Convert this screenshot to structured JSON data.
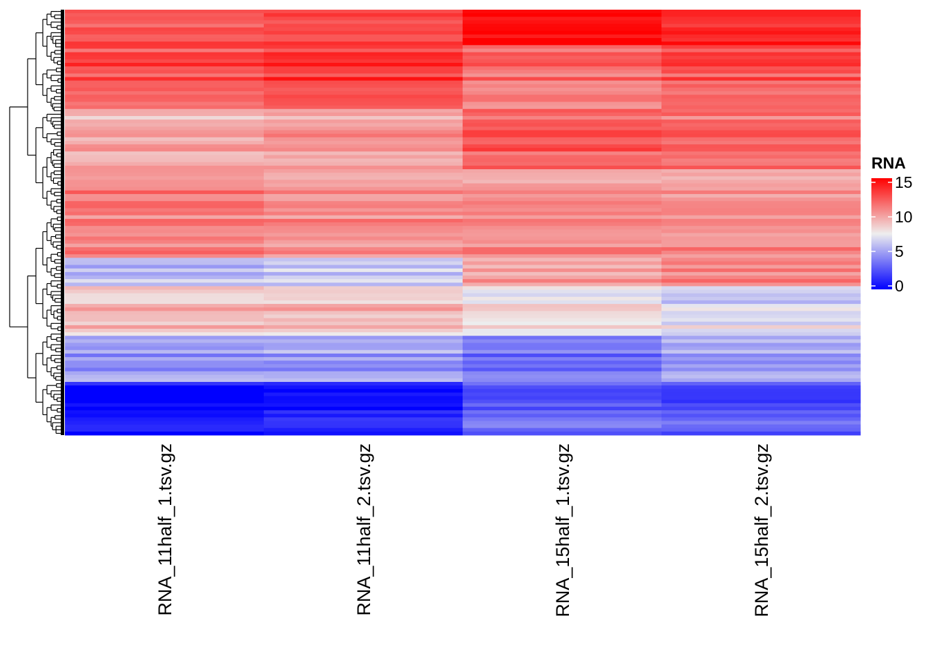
{
  "chart_data": {
    "type": "heatmap",
    "title": "",
    "xlabel": "",
    "ylabel": "",
    "columns": [
      "RNA_11half_1.tsv.gz",
      "RNA_11half_2.tsv.gz",
      "RNA_15half_1.tsv.gz",
      "RNA_15half_2.tsv.gz"
    ],
    "row_count": 120,
    "row_dendrogram": true,
    "row_segments": [
      {
        "rows": [
          0,
          10
        ],
        "values": [
          12.5,
          13.0,
          15.0,
          14.0
        ]
      },
      {
        "rows": [
          10,
          28
        ],
        "values": [
          12.5,
          13.0,
          11.5,
          12.5
        ]
      },
      {
        "rows": [
          28,
          45
        ],
        "values": [
          9.5,
          10.0,
          12.0,
          11.5
        ]
      },
      {
        "rows": [
          45,
          70
        ],
        "values": [
          11.0,
          10.5,
          10.5,
          10.5
        ]
      },
      {
        "rows": [
          70,
          78
        ],
        "values": [
          6.0,
          6.5,
          10.0,
          11.0
        ]
      },
      {
        "rows": [
          78,
          92
        ],
        "values": [
          9.0,
          9.0,
          8.0,
          7.0
        ]
      },
      {
        "rows": [
          92,
          105
        ],
        "values": [
          5.0,
          5.0,
          3.5,
          5.0
        ]
      },
      {
        "rows": [
          105,
          120
        ],
        "values": [
          0.5,
          1.0,
          3.0,
          2.5
        ]
      }
    ],
    "color_scale": {
      "name": "RNA",
      "min": 0,
      "mid": 7.5,
      "max": 15,
      "colors": [
        "#0000ff",
        "#eeeeee",
        "#ff0000"
      ],
      "ticks": [
        "0",
        "5",
        "10",
        "15"
      ]
    }
  }
}
